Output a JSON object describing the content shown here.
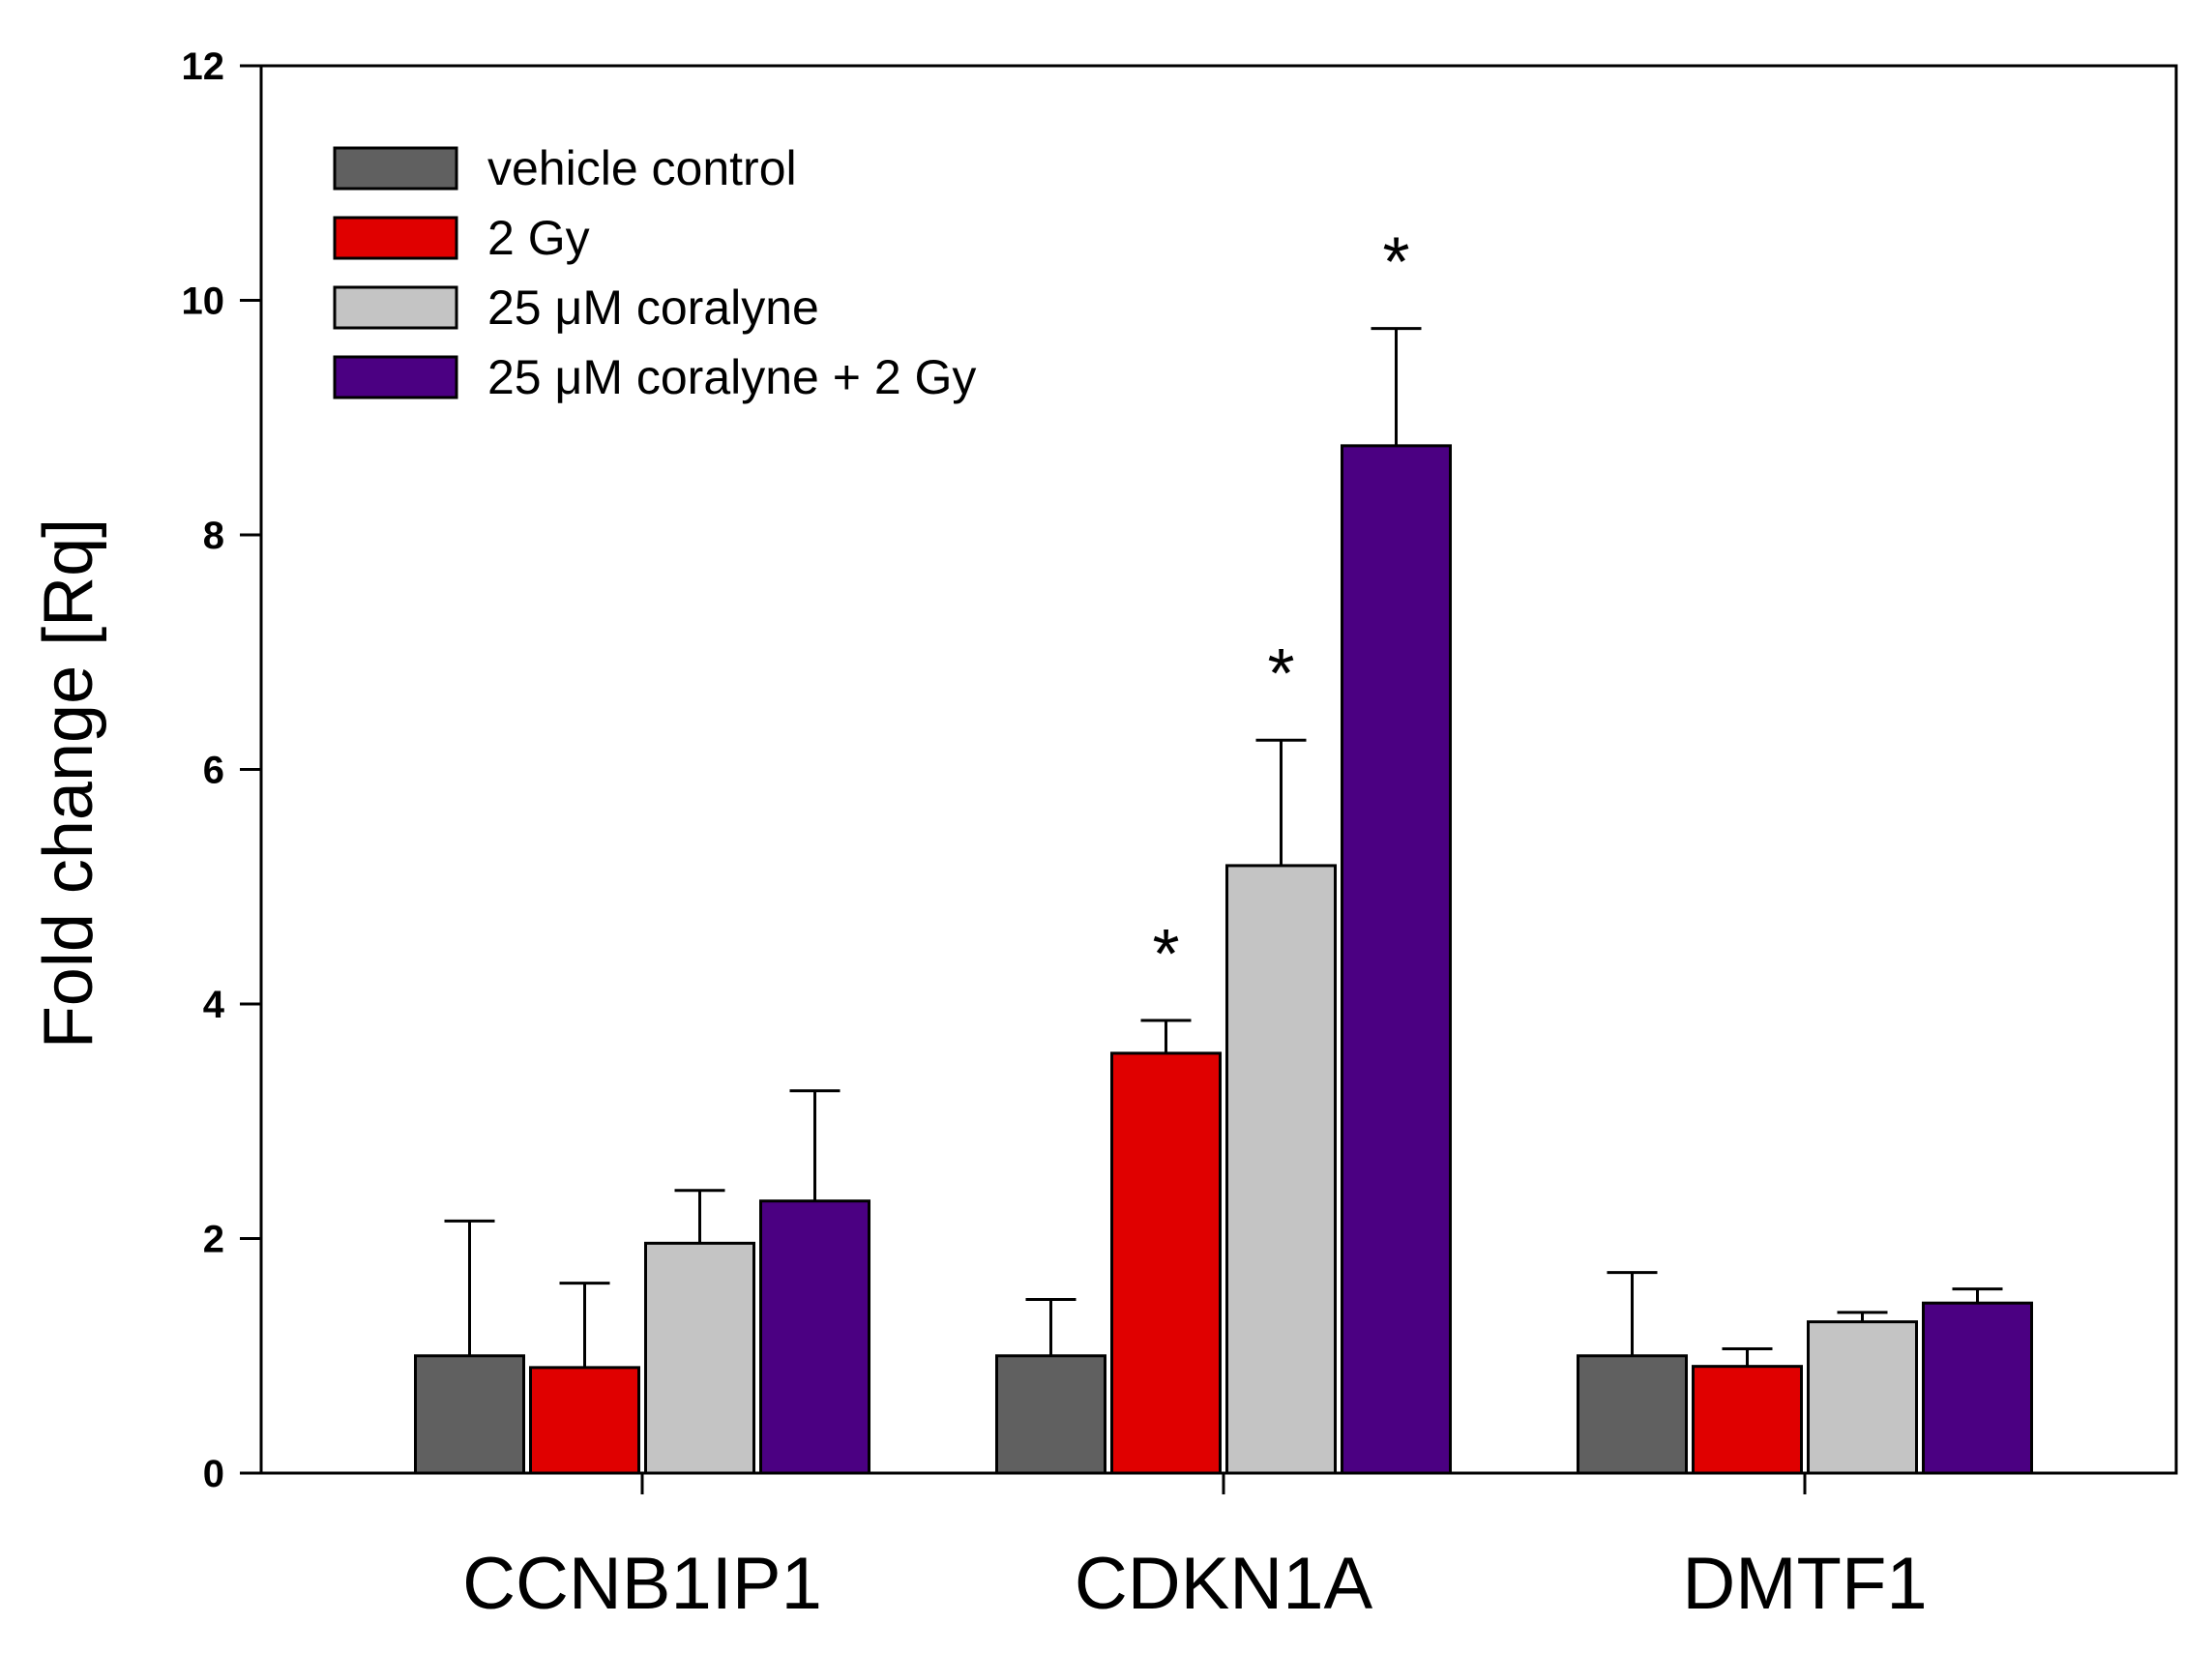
{
  "chart_data": {
    "type": "bar",
    "title": "",
    "xlabel": "",
    "ylabel": "Fold change [Rq]",
    "ylim": [
      0,
      12
    ],
    "yticks": [
      "0",
      "2",
      "4",
      "6",
      "8",
      "10",
      "12"
    ],
    "grid": false,
    "legend_position": "top-left",
    "categories": [
      "CCNB1IP1",
      "CDKN1A",
      "DMTF1"
    ],
    "series": [
      {
        "name": "vehicle control",
        "color": "#606060",
        "values": [
          1.0,
          1.0,
          1.0
        ],
        "errors": [
          1.15,
          0.48,
          0.71
        ],
        "significant": [
          false,
          false,
          false
        ]
      },
      {
        "name": "2 Gy",
        "color": "#e00000",
        "values": [
          0.9,
          3.58,
          0.91
        ],
        "errors": [
          0.72,
          0.28,
          0.15
        ],
        "significant": [
          false,
          true,
          false
        ]
      },
      {
        "name": "25 μM coralyne",
        "color": "#c4c4c4",
        "values": [
          1.96,
          5.18,
          1.29
        ],
        "errors": [
          0.45,
          1.07,
          0.08
        ],
        "significant": [
          false,
          true,
          false
        ]
      },
      {
        "name": "25 μM coralyne + 2 Gy",
        "color": "#4b0082",
        "values": [
          2.32,
          8.76,
          1.45
        ],
        "errors": [
          0.94,
          1.0,
          0.12
        ],
        "significant": [
          false,
          true,
          false
        ]
      }
    ],
    "significance_marker": "*"
  }
}
